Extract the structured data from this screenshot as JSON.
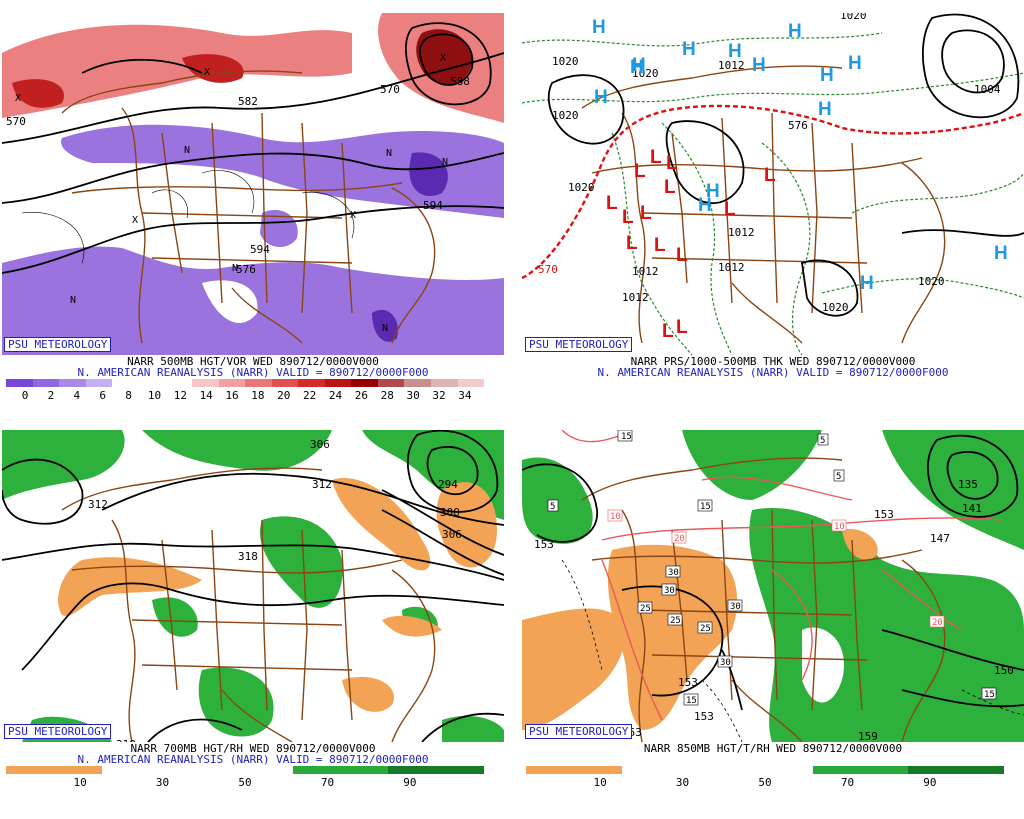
{
  "panels": [
    {
      "id": "p500",
      "badge": "PSU METEOROLOGY",
      "caption_line1": "NARR 500MB HGT/VOR WED 890712/0000V000",
      "caption_line2": "N. AMERICAN REANALYSIS (NARR) VALID = 890712/0000F000",
      "legend": {
        "labels": [
          "0",
          "2",
          "4",
          "6",
          "8",
          "10",
          "12",
          "14",
          "16",
          "18",
          "20",
          "22",
          "24",
          "26",
          "28",
          "30",
          "32",
          "34"
        ],
        "colors": [
          "#7a46d6",
          "#9168e0",
          "#a98ae8",
          "#c3b0f0",
          "#ffffff",
          "#ffffff",
          "#ffffff",
          "#f7c7c7",
          "#f0a0a0",
          "#e87878",
          "#e05050",
          "#d22b2b",
          "#b81414",
          "#980000",
          "#b04b4b",
          "#c78f8f",
          "#deb3b3",
          "#f2cccc"
        ]
      },
      "contour_labels": [
        "570",
        "582",
        "594",
        "576",
        "570",
        "588",
        "594"
      ]
    },
    {
      "id": "psfc",
      "badge": "PSU METEOROLOGY",
      "caption_line1": "NARR PRS/1000-500MB THK WED 890712/0000V000",
      "caption_line2": "N. AMERICAN REANALYSIS (NARR) VALID = 890712/0000F000",
      "contour_labels": [
        "1020",
        "1020",
        "1020",
        "1020",
        "1012",
        "1012",
        "1012",
        "1012",
        "1020",
        "1020",
        "1004",
        "570",
        "576",
        "1020",
        "1012"
      ]
    },
    {
      "id": "p700",
      "badge": "PSU METEOROLOGY",
      "caption_line1": "NARR 700MB HGT/RH WED 890712/0000V000",
      "caption_line2": "N. AMERICAN REANALYSIS (NARR) VALID = 890712/0000F000",
      "legend": {
        "labels": [
          "10",
          "30",
          "50",
          "70",
          "90"
        ],
        "colors": [
          "#f2a355",
          "#ffffff",
          "#ffffff",
          "#2aa83a",
          "#177a26"
        ]
      },
      "contour_labels": [
        "306",
        "312",
        "318",
        "318",
        "300",
        "306",
        "294",
        "312"
      ]
    },
    {
      "id": "p850",
      "badge": "PSU METEOROLOGY",
      "caption_line1": "NARR 850MB HGT/T/RH WED 890712/0000V000",
      "caption_line2": "",
      "legend": {
        "labels": [
          "10",
          "30",
          "50",
          "70",
          "90"
        ],
        "colors": [
          "#f2a355",
          "#ffffff",
          "#ffffff",
          "#2aa83a",
          "#177a26"
        ]
      },
      "contour_labels": [
        "153",
        "153",
        "153",
        "153",
        "153",
        "147",
        "141",
        "135",
        "159",
        "159",
        "150"
      ],
      "boxed_labels": [
        "15",
        "15",
        "5",
        "5",
        "5",
        "10",
        "10",
        "20",
        "20",
        "30",
        "30",
        "25",
        "25",
        "30",
        "30",
        "25",
        "15",
        "15"
      ]
    }
  ],
  "symbols": {
    "high": "H",
    "low": "L",
    "vort_max": "X",
    "vort_min": "N"
  },
  "colors": {
    "brown_border": "#8b4513",
    "contour": "#000000",
    "vort_purple": "#8a5ad8",
    "vort_red": "#e86a6a",
    "rh_green": "#2db03c",
    "rh_orange": "#f2a355",
    "high_blue": "#1e9ae0",
    "low_red": "#e01010",
    "thickness_green": "#2a8a2a",
    "thickness_red": "#e01010"
  }
}
